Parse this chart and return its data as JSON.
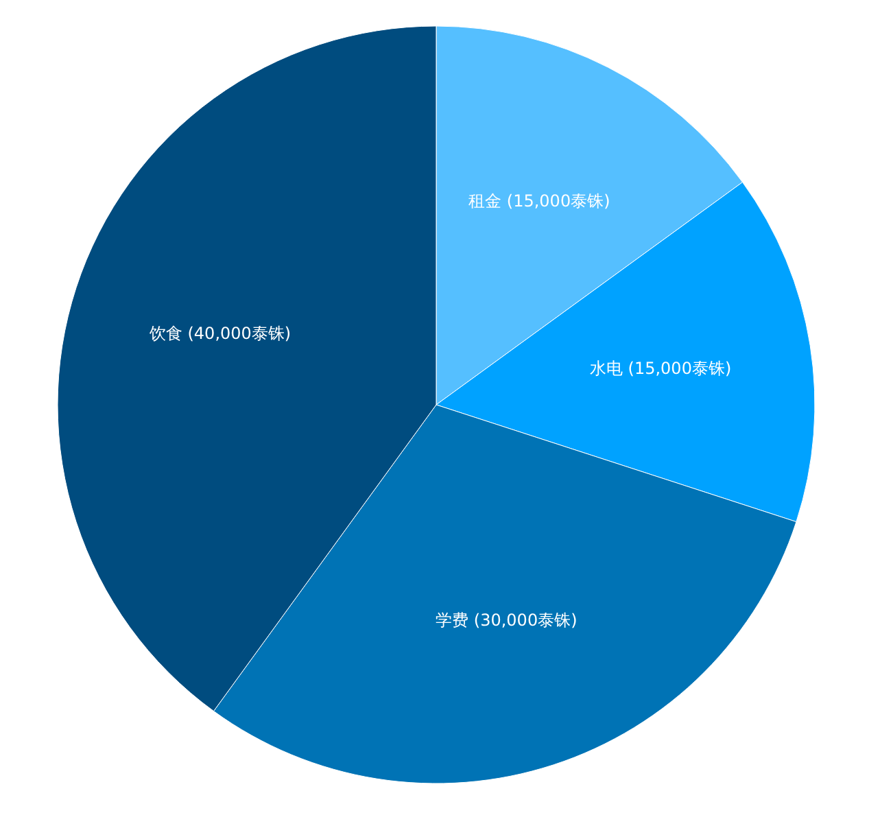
{
  "chart_data": {
    "type": "pie",
    "categories": [
      "租金",
      "水电",
      "学费",
      "饮食"
    ],
    "values": [
      15000,
      15000,
      30000,
      40000
    ],
    "value_labels": [
      "(15,000泰铢)",
      "(15,000泰铢)",
      "(30,000泰铢)",
      "(40,000泰铢)"
    ],
    "colors": [
      "#55bfff",
      "#00a2ff",
      "#0073b5",
      "#004c7f"
    ]
  }
}
